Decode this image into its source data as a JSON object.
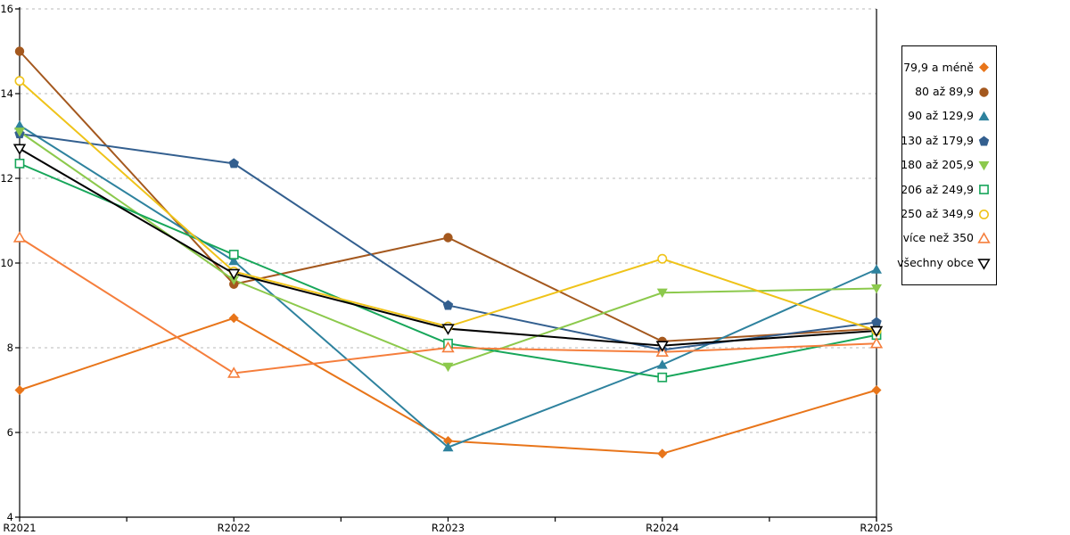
{
  "chart_data": {
    "type": "line",
    "title": "",
    "xlabel": "",
    "ylabel": "",
    "categories": [
      "R2021",
      "R2022",
      "R2023",
      "R2024",
      "R2025"
    ],
    "y_axis": {
      "min": 4,
      "max": 16,
      "tick_step": 2,
      "tick_labels": [
        "4",
        "6",
        "8",
        "10",
        "12",
        "14",
        "16"
      ]
    },
    "grid": "horizontal dashed gridlines at 6,8,10,12,14,16",
    "legend_position": "right",
    "series": [
      {
        "name": "79,9 a méně",
        "color": "#E8751A",
        "marker": "diamond-filled",
        "values": [
          7.0,
          8.7,
          5.8,
          5.5,
          7.0
        ]
      },
      {
        "name": "80 až 89,9",
        "color": "#A4581E",
        "marker": "circle-filled",
        "values": [
          15.0,
          9.5,
          10.6,
          8.15,
          8.45
        ]
      },
      {
        "name": "90 až 129,9",
        "color": "#2E829E",
        "marker": "triangle-up-filled",
        "values": [
          13.25,
          10.05,
          5.65,
          7.6,
          9.85
        ]
      },
      {
        "name": "130 až 179,9",
        "color": "#335F8F",
        "marker": "pentagon-filled",
        "values": [
          13.05,
          12.35,
          9.0,
          7.95,
          8.6
        ]
      },
      {
        "name": "180 až 205,9",
        "color": "#8CC94C",
        "marker": "triangle-down-filled",
        "values": [
          13.1,
          9.6,
          7.55,
          9.3,
          9.4
        ]
      },
      {
        "name": "206 až 249,9",
        "color": "#17A65A",
        "marker": "square-open",
        "values": [
          12.35,
          10.2,
          8.1,
          7.3,
          8.3
        ]
      },
      {
        "name": "250 až 349,9",
        "color": "#EFC319",
        "marker": "circle-open",
        "values": [
          14.3,
          9.8,
          8.5,
          10.1,
          8.4
        ]
      },
      {
        "name": "více než 350",
        "color": "#F57E3C",
        "marker": "triangle-up-open",
        "values": [
          10.6,
          7.4,
          8.0,
          7.9,
          8.1
        ]
      },
      {
        "name": "všechny obce",
        "color": "#000000",
        "marker": "triangle-down-open",
        "values": [
          12.7,
          9.75,
          8.45,
          8.05,
          8.4
        ]
      }
    ]
  },
  "layout_colors": {
    "grid": "#B9B9B9",
    "axis": "#000000",
    "background": "#FFFFFF"
  }
}
